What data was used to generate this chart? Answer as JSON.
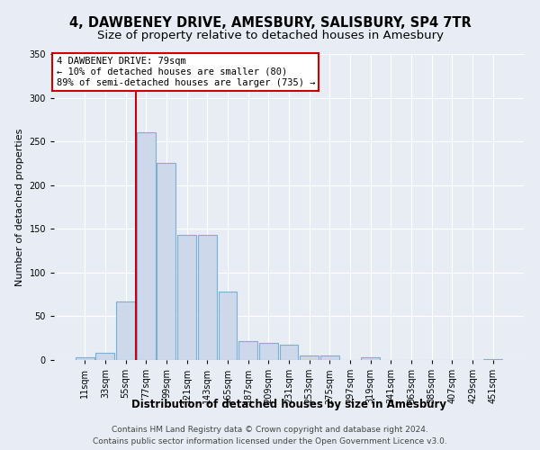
{
  "title": "4, DAWBENEY DRIVE, AMESBURY, SALISBURY, SP4 7TR",
  "subtitle": "Size of property relative to detached houses in Amesbury",
  "xlabel": "Distribution of detached houses by size in Amesbury",
  "ylabel": "Number of detached properties",
  "bar_labels": [
    "11sqm",
    "33sqm",
    "55sqm",
    "77sqm",
    "99sqm",
    "121sqm",
    "143sqm",
    "165sqm",
    "187sqm",
    "209sqm",
    "231sqm",
    "253sqm",
    "275sqm",
    "297sqm",
    "319sqm",
    "341sqm",
    "363sqm",
    "385sqm",
    "407sqm",
    "429sqm",
    "451sqm"
  ],
  "bar_values": [
    3,
    8,
    67,
    260,
    225,
    143,
    143,
    78,
    22,
    20,
    17,
    5,
    5,
    0,
    3,
    0,
    0,
    0,
    0,
    0,
    1
  ],
  "bar_color": "#cdd8ea",
  "bar_edgecolor": "#7bafd4",
  "vline_color": "#cc0000",
  "annotation_text": "4 DAWBENEY DRIVE: 79sqm\n← 10% of detached houses are smaller (80)\n89% of semi-detached houses are larger (735) →",
  "annotation_box_color": "white",
  "annotation_box_edgecolor": "#cc0000",
  "ylim": [
    0,
    350
  ],
  "yticks": [
    0,
    50,
    100,
    150,
    200,
    250,
    300,
    350
  ],
  "footer_text": "Contains HM Land Registry data © Crown copyright and database right 2024.\nContains public sector information licensed under the Open Government Licence v3.0.",
  "background_color": "#e8edf5",
  "plot_bg_color": "#e8edf5",
  "grid_color": "white",
  "title_fontsize": 10.5,
  "subtitle_fontsize": 9.5,
  "xlabel_fontsize": 8.5,
  "ylabel_fontsize": 8,
  "tick_fontsize": 7,
  "footer_fontsize": 6.5,
  "annot_fontsize": 7.5
}
